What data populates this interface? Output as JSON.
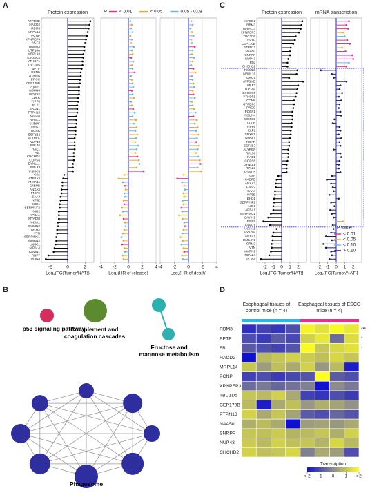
{
  "panel_labels": [
    "A",
    "B",
    "C",
    "D"
  ],
  "network": {
    "nodes": [
      {
        "label": "p53 signaling pathway",
        "color": "#d62e5c"
      },
      {
        "label": "Complement and coagulation cascades",
        "color": "#5b8a2f"
      },
      {
        "label": "Fructose and mannose metabolism",
        "color": "#2fb0b0"
      },
      {
        "label": "Phagosome",
        "color": "#2e2e9e"
      }
    ]
  },
  "chart_data": [
    {
      "type": "lollipop",
      "title": "Protein expression",
      "x_label": "Log₂(FC(Tumor/NAT))",
      "color": "#000000",
      "categories": [
        "ATP5ME",
        "HACD2",
        "RBM3",
        "MRPL14",
        "PCNP",
        "XPNPEP3",
        "MLF2",
        "TIMM23",
        "UTP14A",
        "MRPL16",
        "EXOSC5",
        "YTHDF1",
        "TBC1D5",
        "BPTF",
        "CCNK",
        "GTPBP6",
        "PRCC",
        "CEP170B",
        "PQBP1",
        "NSUN4",
        "WDR92",
        "LDLR",
        "YIPF6",
        "ELF1",
        "SRXN1",
        "PTPN13",
        "NAA50",
        "NHSL1",
        "SNRPF",
        "DRG1",
        "TIGAR",
        "EEF1B2",
        "ALYREF",
        "NUP43",
        "RPL36",
        "RAE1",
        "FBL",
        "CHCHD2",
        "COPS6",
        "DYNLL1",
        "RPL23",
        "PSMC5",
        "C8A",
        "ATP2A3",
        "ANXA11",
        "C4BPB",
        "ANXA3",
        "FNIP2",
        "SAA4",
        "NT5E",
        "EHD1",
        "SERPINF2",
        "NID2",
        "APBA1",
        "MYADM",
        "ANXA1",
        "EMILIN2",
        "ORM2",
        "VTN",
        "SERPINC1",
        "MMRN2",
        "LAMC1",
        "NIPAL4",
        "CAVIN1",
        "RBP7",
        "PLIN4"
      ],
      "values": [
        2.6,
        2.5,
        2.4,
        2.3,
        2.2,
        2.1,
        2.0,
        1.9,
        1.9,
        1.8,
        1.8,
        1.7,
        1.7,
        1.6,
        1.5,
        1.5,
        1.4,
        1.4,
        1.3,
        1.3,
        1.3,
        1.2,
        1.2,
        1.1,
        1.1,
        1.1,
        1.0,
        1.0,
        1.0,
        0.9,
        0.9,
        0.9,
        0.8,
        0.8,
        0.8,
        0.8,
        0.7,
        0.7,
        0.7,
        0.6,
        0.6,
        0.6,
        -0.4,
        -0.5,
        -0.6,
        -0.6,
        -0.7,
        -0.7,
        -0.8,
        -0.8,
        -0.9,
        -0.9,
        -1.0,
        -1.0,
        -1.0,
        -1.1,
        -1.1,
        -1.2,
        -1.2,
        -1.3,
        -1.3,
        -1.4,
        -1.5,
        -1.6,
        -2.2,
        -2.5
      ],
      "xlim": [
        -3,
        3
      ],
      "xticks": [
        -2,
        0,
        2
      ]
    },
    {
      "type": "lollipop",
      "x_label": "Log₂(HR of relapse)",
      "legend": {
        "title": "P",
        "items": [
          {
            "label": "< 0.01",
            "color": "#e8318a"
          },
          {
            "label": "< 0.05",
            "color": "#f5a623"
          },
          {
            "label": "0.05 - 0.08",
            "color": "#6cb4ee"
          }
        ]
      },
      "values": [
        0.3,
        0.5,
        0.4,
        0.6,
        0.3,
        0.5,
        0.4,
        0.8,
        0.5,
        0.6,
        0.4,
        0.7,
        0.5,
        0.6,
        0.9,
        0.4,
        0.5,
        0.6,
        0.7,
        0.5,
        0.6,
        0.8,
        0.4,
        0.5,
        0.7,
        0.9,
        0.6,
        1.1,
        0.8,
        1.2,
        1.0,
        1.3,
        1.1,
        1.0,
        1.4,
        1.2,
        1.0,
        1.3,
        1.5,
        1.6,
        1.2,
        2.2,
        -0.6,
        -1.4,
        -0.8,
        -0.5,
        -0.4,
        -0.6,
        -0.5,
        -0.7,
        -0.6,
        -0.9,
        -0.8,
        -1.2,
        -0.7,
        -0.5,
        -0.4,
        -0.6,
        -0.8,
        -1.0,
        -0.7,
        -0.9,
        -0.6,
        -0.5,
        -0.8,
        -0.7
      ],
      "colors": [
        "#6cb4ee",
        "#f5a623",
        "#6cb4ee",
        "#6cb4ee",
        "#f5a623",
        "#6cb4ee",
        "#f5a623",
        "#6cb4ee",
        "#6cb4ee",
        "#f5a623",
        "#e8318a",
        "#6cb4ee",
        "#f5a623",
        "#6cb4ee",
        "#e8318a",
        "#6cb4ee",
        "#f5a623",
        "#6cb4ee",
        "#6cb4ee",
        "#e8318a",
        "#6cb4ee",
        "#f5a623",
        "#6cb4ee",
        "#f5a623",
        "#e8318a",
        "#6cb4ee",
        "#6cb4ee",
        "#f5a623",
        "#6cb4ee",
        "#f5a623",
        "#6cb4ee",
        "#f5a623",
        "#6cb4ee",
        "#f5a623",
        "#6cb4ee",
        "#6cb4ee",
        "#f5a623",
        "#e8318a",
        "#f5a623",
        "#6cb4ee",
        "#f5a623",
        "#e8318a",
        "#f5a623",
        "#f5a623",
        "#6cb4ee",
        "#e8318a",
        "#f5a623",
        "#6cb4ee",
        "#6cb4ee",
        "#f5a623",
        "#e8318a",
        "#f5a623",
        "#6cb4ee",
        "#f5a623",
        "#e8318a",
        "#f5a623",
        "#6cb4ee",
        "#f5a623",
        "#f5a623",
        "#6cb4ee",
        "#f5a623",
        "#e8318a",
        "#f5a623",
        "#6cb4ee",
        "#f5a623",
        "#f5a623"
      ],
      "xlim": [
        -4,
        4
      ],
      "xticks": [
        -4,
        -2,
        0,
        2,
        4
      ]
    },
    {
      "type": "lollipop",
      "x_label": "Log₂(HR of death)",
      "values": [
        0.4,
        0.6,
        0.3,
        0.5,
        0.7,
        0.4,
        0.5,
        0.9,
        0.6,
        0.5,
        0.8,
        0.6,
        0.4,
        0.7,
        1.0,
        0.5,
        0.6,
        0.7,
        0.8,
        0.6,
        0.7,
        0.9,
        0.5,
        0.6,
        0.8,
        1.0,
        0.7,
        1.2,
        0.9,
        1.3,
        1.1,
        1.4,
        1.2,
        1.1,
        1.5,
        1.3,
        1.1,
        1.4,
        1.6,
        1.7,
        1.3,
        1.8,
        -0.7,
        -1.6,
        -0.9,
        -0.6,
        -0.5,
        -0.7,
        -0.6,
        -0.8,
        -0.7,
        -1.0,
        -0.9,
        -1.3,
        -0.8,
        -0.6,
        -0.5,
        -0.7,
        -0.9,
        -1.1,
        -0.8,
        -1.0,
        -0.7,
        -0.6,
        -0.9,
        -0.8
      ],
      "colors": [
        "#f5a623",
        "#6cb4ee",
        "#6cb4ee",
        "#f5a623",
        "#6cb4ee",
        "#f5a623",
        "#6cb4ee",
        "#e8318a",
        "#6cb4ee",
        "#f5a623",
        "#6cb4ee",
        "#f5a623",
        "#6cb4ee",
        "#e8318a",
        "#f5a623",
        "#6cb4ee",
        "#6cb4ee",
        "#f5a623",
        "#6cb4ee",
        "#f5a623",
        "#e8318a",
        "#6cb4ee",
        "#f5a623",
        "#6cb4ee",
        "#f5a623",
        "#6cb4ee",
        "#e8318a",
        "#f5a623",
        "#6cb4ee",
        "#f5a623",
        "#6cb4ee",
        "#f5a623",
        "#6cb4ee",
        "#e8318a",
        "#f5a623",
        "#6cb4ee",
        "#f5a623",
        "#6cb4ee",
        "#f5a623",
        "#e8318a",
        "#6cb4ee",
        "#f5a623",
        "#f5a623",
        "#e8318a",
        "#6cb4ee",
        "#f5a623",
        "#6cb4ee",
        "#f5a623",
        "#f5a623",
        "#6cb4ee",
        "#f5a623",
        "#e8318a",
        "#6cb4ee",
        "#f5a623",
        "#f5a623",
        "#6cb4ee",
        "#e8318a",
        "#f5a623",
        "#6cb4ee",
        "#f5a623",
        "#f5a623",
        "#6cb4ee",
        "#f5a623",
        "#e8318a",
        "#f5a623",
        "#6cb4ee"
      ],
      "xlim": [
        -4,
        4
      ],
      "xticks": [
        -4,
        -2,
        0,
        2,
        4
      ]
    },
    {
      "type": "lollipop",
      "title": "Protein expression",
      "x_label": "Log₂[FC(Tumor/NAT)]",
      "color": "#000000",
      "categories": [
        "HACD2",
        "RBM3",
        "MRPL14",
        "XPNPEP3",
        "TBC1D5",
        "BPTF",
        "CEP170B",
        "PTPN13",
        "NAA50",
        "SNRPF",
        "NUP43",
        "FBL",
        "CHCHD2",
        "TIMM23",
        "MRPL16",
        "DRG1",
        "ATP5ME",
        "MLF2",
        "UTP14A",
        "EXOSC5",
        "YTHDF1",
        "CCNK",
        "GTPBP6",
        "PRCC",
        "PQBP1",
        "NSUN4",
        "WDR92",
        "LDLR",
        "YIPF6",
        "ELF1",
        "SRXN1",
        "NHSL1",
        "TIGAR",
        "EEF1B2",
        "ALYREF",
        "RPL36",
        "RAE1",
        "COPS6",
        "DYNLL1",
        "RPL23",
        "PSMC5",
        "C8A",
        "C4BPB",
        "ANXA3",
        "FNIP2",
        "SAA4",
        "NT5E",
        "EHD1",
        "SERPINF2",
        "NID2",
        "APBA1",
        "SERPINC1",
        "CAVIN1",
        "RBP7",
        "LAMC1",
        "ANXA11",
        "MYADM",
        "ANXA1",
        "EMILIN2",
        "ORM2",
        "VTN",
        "MMRN2",
        "NIPAL4",
        "PLIN4"
      ],
      "values": [
        2.5,
        2.4,
        2.3,
        2.1,
        1.7,
        1.6,
        1.4,
        1.1,
        1.0,
        1.0,
        0.8,
        0.7,
        0.7,
        1.9,
        1.8,
        0.9,
        2.6,
        2.0,
        1.9,
        1.8,
        1.7,
        1.5,
        1.5,
        1.4,
        1.3,
        1.3,
        1.3,
        1.2,
        1.2,
        1.1,
        1.1,
        1.0,
        0.9,
        0.9,
        0.8,
        0.8,
        0.8,
        0.7,
        0.6,
        0.6,
        0.6,
        -0.4,
        -0.6,
        -0.7,
        -0.7,
        -0.8,
        -0.8,
        -0.9,
        -0.9,
        -1.0,
        -1.0,
        -1.3,
        -1.6,
        -2.2,
        -1.4,
        -0.6,
        -1.0,
        -1.1,
        -1.1,
        -1.2,
        -1.2,
        -1.3,
        -1.5,
        -2.5
      ],
      "xlim": [
        -3,
        3
      ],
      "xticks": [
        -2,
        -1,
        0,
        1,
        2
      ]
    },
    {
      "type": "lollipop",
      "title": "mRNA transcription",
      "x_label": "Log₂[FC(Tumor/NAT)]",
      "legend": {
        "title": "P value",
        "items": [
          {
            "label": "< 0.01",
            "color": "#e8318a"
          },
          {
            "label": "< 0.05",
            "color": "#f5a623"
          },
          {
            "label": "< 0.10",
            "color": "#6cb4ee"
          },
          {
            "label": "> 0.10",
            "color": "#1a1a60"
          }
        ]
      },
      "values": [
        1.5,
        1.2,
        1.4,
        0.8,
        1.0,
        1.3,
        1.6,
        0.7,
        1.1,
        1.9,
        2.0,
        1.5,
        1.2,
        -1.8,
        -0.5,
        -0.3,
        1.2,
        0.5,
        0.4,
        0.7,
        0.3,
        0.6,
        0.4,
        0.3,
        0.5,
        0.6,
        -0.2,
        -0.4,
        0.4,
        0.5,
        0.3,
        0.6,
        0.4,
        0.5,
        -0.3,
        0.5,
        0.6,
        0.4,
        0.3,
        0.3,
        0.5,
        -0.5,
        -1.1,
        -0.6,
        -0.4,
        -0.3,
        -0.8,
        0.3,
        -0.6,
        -0.2,
        -0.7,
        -0.5,
        -0.3,
        0.8,
        -0.4,
        -0.3,
        -0.6,
        -1.2,
        -0.5,
        -1.5,
        -1.2,
        -0.6,
        -0.5,
        -0.8
      ],
      "colors": [
        "#e8318a",
        "#e8318a",
        "#e8318a",
        "#f5a623",
        "#6cb4ee",
        "#e8318a",
        "#e8318a",
        "#f5a623",
        "#e8318a",
        "#e8318a",
        "#e8318a",
        "#6cb4ee",
        "#e8318a",
        "#1a1a60",
        "#1a1a60",
        "#1a1a60",
        "#1a1a60",
        "#1a1a60",
        "#1a1a60",
        "#1a1a60",
        "#1a1a60",
        "#1a1a60",
        "#1a1a60",
        "#1a1a60",
        "#1a1a60",
        "#1a1a60",
        "#1a1a60",
        "#1a1a60",
        "#1a1a60",
        "#1a1a60",
        "#1a1a60",
        "#1a1a60",
        "#1a1a60",
        "#1a1a60",
        "#1a1a60",
        "#1a1a60",
        "#1a1a60",
        "#1a1a60",
        "#1a1a60",
        "#1a1a60",
        "#1a1a60",
        "#1a1a60",
        "#1a1a60",
        "#1a1a60",
        "#1a1a60",
        "#1a1a60",
        "#1a1a60",
        "#1a1a60",
        "#1a1a60",
        "#1a1a60",
        "#1a1a60",
        "#1a1a60",
        "#1a1a60",
        "#f5a623",
        "#1a1a60",
        "#1a1a60",
        "#1a1a60",
        "#1a1a60",
        "#1a1a60",
        "#1a1a60",
        "#1a1a60",
        "#1a1a60",
        "#1a1a60",
        "#1a1a60"
      ],
      "xlim": [
        -3,
        3
      ],
      "xticks": [
        -2,
        -1,
        0,
        1,
        2
      ]
    },
    {
      "type": "heatmap",
      "column_groups": [
        {
          "label": "Esophageal tissues of control mice (n = 4)",
          "color": "#29b6e8"
        },
        {
          "label": "Esophageal tissues of ESCC mice (n = 4)",
          "color": "#e8318a"
        }
      ],
      "categories": [
        "RBM3",
        "BPTF",
        "FBL",
        "HACD2",
        "MRPL14",
        "PCNP",
        "XPNPEP3",
        "TBC1D5",
        "CEP170B",
        "PTPN13",
        "NAA50",
        "SNRPF",
        "NUP43",
        "CHCHD2"
      ],
      "row_annotations": [
        "***",
        "*",
        "*",
        null,
        null,
        null,
        null,
        null,
        null,
        null,
        null,
        null,
        null,
        null
      ],
      "values": [
        [
          -1.5,
          -1.2,
          -1.4,
          -1.0,
          1.8,
          1.5,
          1.9,
          1.6
        ],
        [
          -1.0,
          -1.3,
          -0.8,
          -1.1,
          1.2,
          1.6,
          -0.5,
          1.4
        ],
        [
          -0.8,
          -1.0,
          -1.2,
          -0.9,
          1.9,
          1.0,
          1.3,
          1.5
        ],
        [
          -2.0,
          0.8,
          1.0,
          1.2,
          1.1,
          0.9,
          1.3,
          1.0
        ],
        [
          1.0,
          0.3,
          0.9,
          0.5,
          1.2,
          0.2,
          0.8,
          -1.8
        ],
        [
          -1.2,
          -1.0,
          -1.3,
          -1.1,
          -0.9,
          2.0,
          -0.8,
          -1.0
        ],
        [
          -0.5,
          -0.3,
          -0.6,
          -0.4,
          -0.2,
          -2.0,
          0.0,
          -0.3
        ],
        [
          1.0,
          0.8,
          1.2,
          0.5,
          -1.2,
          -1.4,
          -1.0,
          -1.3
        ],
        [
          0.8,
          -1.8,
          0.5,
          0.9,
          0.2,
          0.6,
          0.4,
          0.1
        ],
        [
          1.2,
          0.5,
          1.0,
          0.4,
          -0.8,
          -1.0,
          -0.6,
          -0.9
        ],
        [
          0.6,
          0.8,
          0.5,
          -2.0,
          0.3,
          0.4,
          0.2,
          0.5
        ],
        [
          1.0,
          0.9,
          1.1,
          0.7,
          0.8,
          1.0,
          0.6,
          1.2
        ],
        [
          1.1,
          0.8,
          1.2,
          0.9,
          1.0,
          0.7,
          1.3,
          0.8
        ],
        [
          1.2,
          0.9,
          1.0,
          1.3,
          -0.2,
          0.5,
          0.3,
          -1.0
        ]
      ],
      "colorbar": {
        "title": "Transcription",
        "lim": [
          -2,
          2
        ],
        "colors": [
          "#1010d0",
          "#8c8c8c",
          "#ffff20"
        ],
        "ticks": [
          {
            "value": -2,
            "label": "<-2"
          },
          -1,
          0,
          1,
          {
            "value": 2,
            "label": ">2"
          }
        ]
      }
    }
  ]
}
